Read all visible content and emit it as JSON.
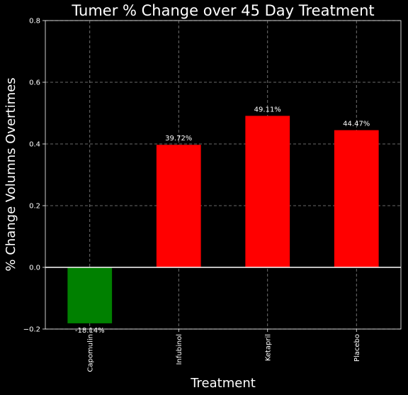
{
  "chart_data": {
    "type": "bar",
    "title": "Tumer % Change over 45 Day Treatment",
    "xlabel": "Treatment",
    "ylabel": "% Change Volumns Overtimes",
    "categories": [
      "Capomulin",
      "Infubinol",
      "Ketapril",
      "Placebo"
    ],
    "values": [
      -0.1814,
      0.3972,
      0.4911,
      0.4447
    ],
    "data_labels": [
      "-18.14%",
      "39.72%",
      "49.11%",
      "44.47%"
    ],
    "bar_colors": [
      "#008000",
      "#ff0000",
      "#ff0000",
      "#ff0000"
    ],
    "ylim": [
      -0.2,
      0.8
    ],
    "yticks": [
      -0.2,
      0.0,
      0.2,
      0.4,
      0.6,
      0.8
    ],
    "ytick_labels": [
      "−0.2",
      "0.0",
      "0.2",
      "0.4",
      "0.6",
      "0.8"
    ],
    "grid": true,
    "zero_line": true,
    "colors": {
      "background": "#000000",
      "text": "#ffffff",
      "grid": "#8c8c8c",
      "axes": "#ffffff"
    }
  }
}
